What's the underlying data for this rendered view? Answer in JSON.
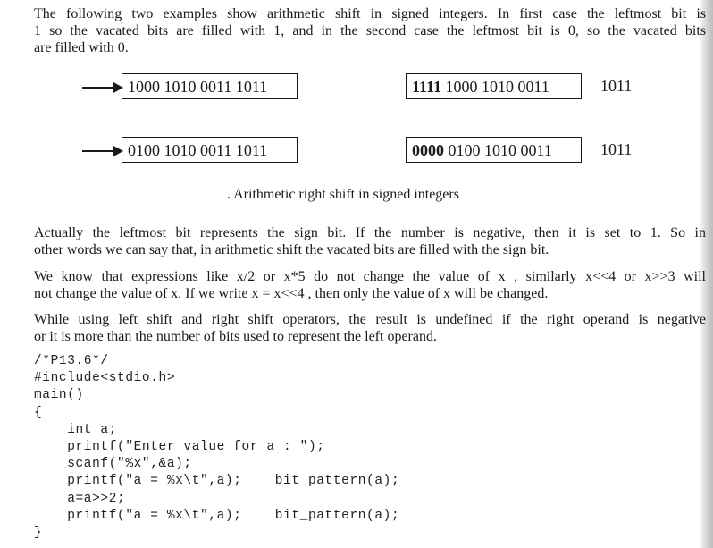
{
  "intro_lines": [
    "The following two examples show arithmetic shift in signed integers. In first case the leftmost bit is",
    "1 so the vacated bits are filled with 1, and in the second case the leftmost bit is 0, so the vacated bits",
    "are filled with 0."
  ],
  "examples": [
    {
      "input": "1000 1010 0011 1011",
      "output_bold": "1111",
      "output_rest": " 1000 1010 0011",
      "shifted_out": "1011"
    },
    {
      "input": "0100 1010 0011 1011",
      "output_bold": "0000",
      "output_rest": " 0100 1010 0011",
      "shifted_out": "1011"
    }
  ],
  "caption": ". Arithmetic right shift in signed integers",
  "para_sign": [
    "Actually the leftmost bit represents the sign bit. If the number is negative, then it is set to 1. So in",
    "other words we can say that, in arithmetic shift the vacated bits are filled with the sign bit."
  ],
  "para_expr": [
    "We know that expressions like x/2 or x*5 do not change the value of x , similarly x<<4 or x>>3 will",
    "not change the value of x. If we write x = x<<4 , then only the value of x will be changed."
  ],
  "para_undef": [
    "While using left shift and right shift operators, the result is undefined if the right operand is negative",
    "or it is more than the number of bits used to represent the left operand."
  ],
  "code_lines": [
    "/*P13.6*/",
    "#include<stdio.h>",
    "main()",
    "{",
    "    int a;",
    "    printf(\"Enter value for a : \");",
    "    scanf(\"%x\",&a);",
    "    printf(\"a = %x\\t\",a);    bit_pattern(a);",
    "    a=a>>2;",
    "    printf(\"a = %x\\t\",a);    bit_pattern(a);",
    "}"
  ]
}
